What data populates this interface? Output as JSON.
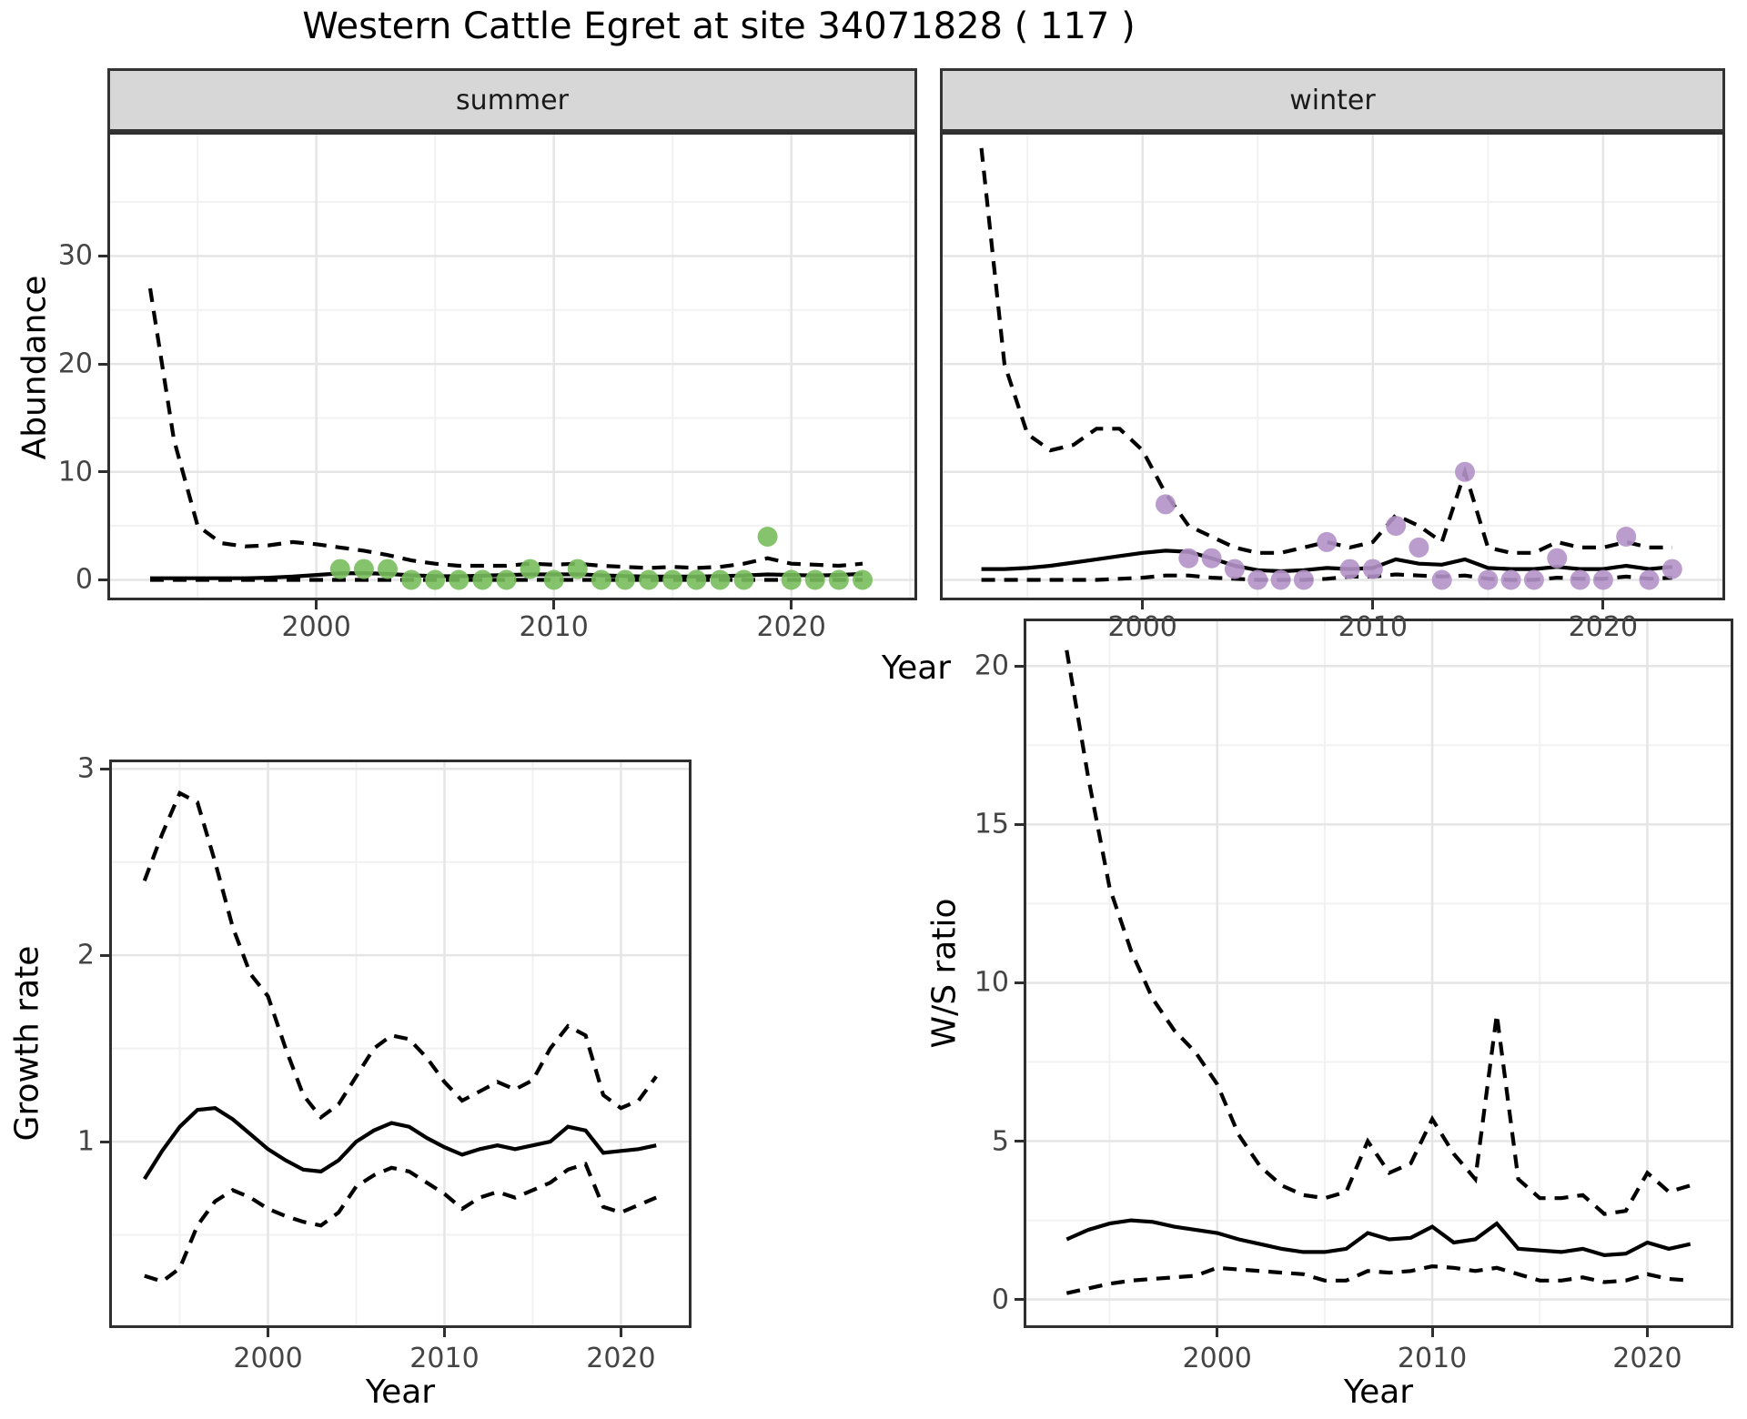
{
  "title": "Western Cattle Egret at site 34071828 ( 117 )",
  "colors": {
    "summer_points": "#78be5c",
    "winter_points": "#b492c8",
    "line": "#000000",
    "strip_background": "#d7d7d7",
    "panel_border": "#2f2f2f",
    "grid_major": "#e5e5e5",
    "grid_minor": "#f1f1f1",
    "tick_text": "#444444"
  },
  "chart_data": [
    {
      "type": "line",
      "panel": "abundance-summer",
      "facet_label": "summer",
      "xlabel": "Year",
      "ylabel": "Abundance",
      "xlim": [
        1991.2,
        2025.3
      ],
      "ylim": [
        -1.9,
        41.5
      ],
      "xticks": [
        2000,
        2010,
        2020
      ],
      "xticks_minor": [
        1995,
        2005,
        2015,
        2025
      ],
      "yticks": [
        0,
        10,
        20,
        30
      ],
      "yticks_minor": [
        5,
        15,
        25,
        35
      ],
      "grid": true,
      "x": [
        1993,
        1994,
        1995,
        1996,
        1997,
        1998,
        1999,
        2000,
        2001,
        2002,
        2003,
        2004,
        2005,
        2006,
        2007,
        2008,
        2009,
        2010,
        2011,
        2012,
        2013,
        2014,
        2015,
        2016,
        2017,
        2018,
        2019,
        2020,
        2021,
        2022,
        2023
      ],
      "series": [
        {
          "name": "upper_ci",
          "style": "dashed",
          "values": [
            27,
            13,
            5,
            3.4,
            3.1,
            3.2,
            3.5,
            3.3,
            3.0,
            2.7,
            2.3,
            1.8,
            1.5,
            1.3,
            1.3,
            1.3,
            1.5,
            1.4,
            1.5,
            1.3,
            1.2,
            1.1,
            1.2,
            1.1,
            1.2,
            1.5,
            2.0,
            1.5,
            1.4,
            1.3,
            1.5
          ]
        },
        {
          "name": "mean",
          "style": "solid",
          "values": [
            0.15,
            0.15,
            0.15,
            0.15,
            0.15,
            0.2,
            0.3,
            0.45,
            0.6,
            0.62,
            0.55,
            0.42,
            0.35,
            0.33,
            0.38,
            0.45,
            0.5,
            0.5,
            0.52,
            0.42,
            0.35,
            0.3,
            0.3,
            0.3,
            0.35,
            0.4,
            0.5,
            0.45,
            0.4,
            0.45,
            0.55
          ]
        },
        {
          "name": "lower_ci",
          "style": "dashed",
          "values": [
            0,
            0,
            0,
            0,
            0,
            0,
            0,
            0,
            0,
            0,
            0,
            0,
            0,
            0,
            0,
            0,
            0,
            0,
            0,
            0,
            0,
            0,
            0,
            0,
            0,
            0,
            0,
            0,
            0,
            0,
            0
          ]
        }
      ],
      "points": {
        "name": "observed_counts",
        "color": "#78be5c",
        "x": [
          2001,
          2002,
          2003,
          2004,
          2005,
          2006,
          2007,
          2008,
          2009,
          2010,
          2011,
          2012,
          2013,
          2014,
          2015,
          2016,
          2017,
          2018,
          2019,
          2020,
          2021,
          2022,
          2023
        ],
        "y": [
          1,
          1,
          1,
          0,
          0,
          0,
          0,
          0,
          1,
          0,
          1,
          0,
          0,
          0,
          0,
          0,
          0,
          0,
          4,
          0,
          0,
          0,
          0
        ]
      }
    },
    {
      "type": "line",
      "panel": "abundance-winter",
      "facet_label": "winter",
      "xlabel": "Year",
      "ylabel": "Abundance",
      "xlim": [
        1991.2,
        2025.3
      ],
      "ylim": [
        -1.9,
        41.5
      ],
      "xticks": [
        2000,
        2010,
        2020
      ],
      "xticks_minor": [
        1995,
        2005,
        2015,
        2025
      ],
      "yticks": [
        0,
        10,
        20,
        30
      ],
      "yticks_minor": [
        5,
        15,
        25,
        35
      ],
      "grid": true,
      "x": [
        1993,
        1994,
        1995,
        1996,
        1997,
        1998,
        1999,
        2000,
        2001,
        2002,
        2003,
        2004,
        2005,
        2006,
        2007,
        2008,
        2009,
        2010,
        2011,
        2012,
        2013,
        2014,
        2015,
        2016,
        2017,
        2018,
        2019,
        2020,
        2021,
        2022,
        2023
      ],
      "series": [
        {
          "name": "upper_ci",
          "style": "dashed",
          "values": [
            40,
            20,
            13.5,
            12,
            12.5,
            14,
            14,
            12,
            8,
            5,
            4,
            3,
            2.5,
            2.5,
            3,
            3.5,
            3,
            3.5,
            6,
            5,
            3.5,
            10,
            3,
            2.5,
            2.5,
            3.5,
            3,
            3,
            3.5,
            3,
            3
          ]
        },
        {
          "name": "mean",
          "style": "solid",
          "values": [
            1.0,
            1.0,
            1.1,
            1.3,
            1.6,
            1.9,
            2.2,
            2.5,
            2.7,
            2.6,
            2.0,
            1.3,
            0.9,
            0.8,
            0.9,
            1.1,
            1.0,
            1.1,
            1.9,
            1.5,
            1.4,
            1.9,
            1.1,
            1.0,
            1.0,
            1.2,
            1.0,
            1.0,
            1.3,
            1.0,
            1.2
          ]
        },
        {
          "name": "lower_ci",
          "style": "dashed",
          "values": [
            0,
            0,
            0,
            0,
            0,
            0,
            0.1,
            0.2,
            0.4,
            0.4,
            0.2,
            0.1,
            0,
            0,
            0,
            0.1,
            0.3,
            0.3,
            0.5,
            0.4,
            0.3,
            0.4,
            0.1,
            0,
            0,
            0.2,
            0.1,
            0.1,
            0.3,
            0.1,
            0.2
          ]
        }
      ],
      "points": {
        "name": "observed_counts",
        "color": "#b492c8",
        "x": [
          2001,
          2002,
          2003,
          2004,
          2005,
          2006,
          2007,
          2008,
          2009,
          2010,
          2011,
          2012,
          2013,
          2014,
          2015,
          2016,
          2017,
          2018,
          2019,
          2020,
          2021,
          2022,
          2023
        ],
        "y": [
          7,
          2,
          2,
          1,
          0,
          0,
          0,
          3.5,
          1,
          1,
          5,
          3,
          0,
          10,
          0,
          0,
          0,
          2,
          0,
          0,
          4,
          0,
          1
        ]
      }
    },
    {
      "type": "line",
      "panel": "growth-rate",
      "facet_label": "",
      "xlabel": "Year",
      "ylabel": "Growth rate",
      "xlim": [
        1991,
        2024
      ],
      "ylim": [
        0,
        3.05
      ],
      "xticks": [
        2000,
        2010,
        2020
      ],
      "xticks_minor": [
        1995,
        2005,
        2015
      ],
      "yticks": [
        1,
        2,
        3
      ],
      "yticks_minor": [
        0.5,
        1.5,
        2.5
      ],
      "grid": true,
      "x": [
        1993,
        1994,
        1995,
        1996,
        1997,
        1998,
        1999,
        2000,
        2001,
        2002,
        2003,
        2004,
        2005,
        2006,
        2007,
        2008,
        2009,
        2010,
        2011,
        2012,
        2013,
        2014,
        2015,
        2016,
        2017,
        2018,
        2019,
        2020,
        2021,
        2022
      ],
      "series": [
        {
          "name": "upper_ci",
          "style": "dashed",
          "values": [
            2.4,
            2.65,
            2.87,
            2.82,
            2.5,
            2.15,
            1.9,
            1.78,
            1.5,
            1.25,
            1.13,
            1.2,
            1.35,
            1.5,
            1.57,
            1.55,
            1.45,
            1.32,
            1.22,
            1.27,
            1.32,
            1.28,
            1.33,
            1.5,
            1.62,
            1.57,
            1.25,
            1.18,
            1.22,
            1.35
          ]
        },
        {
          "name": "mean",
          "style": "solid",
          "values": [
            0.8,
            0.95,
            1.08,
            1.17,
            1.18,
            1.12,
            1.04,
            0.96,
            0.9,
            0.85,
            0.84,
            0.9,
            1.0,
            1.06,
            1.1,
            1.08,
            1.02,
            0.97,
            0.93,
            0.96,
            0.98,
            0.96,
            0.98,
            1.0,
            1.08,
            1.06,
            0.94,
            0.95,
            0.96,
            0.98
          ]
        },
        {
          "name": "lower_ci",
          "style": "dashed",
          "values": [
            0.28,
            0.25,
            0.32,
            0.55,
            0.68,
            0.74,
            0.7,
            0.64,
            0.6,
            0.57,
            0.55,
            0.62,
            0.76,
            0.82,
            0.86,
            0.84,
            0.78,
            0.72,
            0.64,
            0.7,
            0.73,
            0.7,
            0.74,
            0.78,
            0.85,
            0.88,
            0.65,
            0.62,
            0.66,
            0.7
          ]
        }
      ]
    },
    {
      "type": "line",
      "panel": "ws-ratio",
      "facet_label": "",
      "xlabel": "Year",
      "ylabel": "W/S ratio",
      "xlim": [
        1991,
        2024
      ],
      "ylim": [
        -0.9,
        21.5
      ],
      "xticks": [
        2000,
        2010,
        2020
      ],
      "xticks_minor": [
        1995,
        2005,
        2015
      ],
      "yticks": [
        0,
        5,
        10,
        15,
        20
      ],
      "yticks_minor": [
        2.5,
        7.5,
        12.5,
        17.5
      ],
      "grid": true,
      "x": [
        1993,
        1994,
        1995,
        1996,
        1997,
        1998,
        1999,
        2000,
        2001,
        2002,
        2003,
        2004,
        2005,
        2006,
        2007,
        2008,
        2009,
        2010,
        2011,
        2012,
        2013,
        2014,
        2015,
        2016,
        2017,
        2018,
        2019,
        2020,
        2021,
        2022
      ],
      "series": [
        {
          "name": "upper_ci",
          "style": "dashed",
          "values": [
            20.5,
            16.5,
            13,
            11,
            9.5,
            8.5,
            7.8,
            6.8,
            5.2,
            4.2,
            3.6,
            3.3,
            3.2,
            3.4,
            5.0,
            4.0,
            4.3,
            5.7,
            4.6,
            3.8,
            9.0,
            3.8,
            3.2,
            3.2,
            3.3,
            2.7,
            2.8,
            4.0,
            3.4,
            3.6
          ]
        },
        {
          "name": "mean",
          "style": "solid",
          "values": [
            1.9,
            2.2,
            2.4,
            2.5,
            2.45,
            2.3,
            2.2,
            2.1,
            1.9,
            1.75,
            1.6,
            1.5,
            1.5,
            1.6,
            2.1,
            1.9,
            1.95,
            2.3,
            1.8,
            1.9,
            2.4,
            1.6,
            1.55,
            1.5,
            1.6,
            1.4,
            1.45,
            1.8,
            1.6,
            1.75
          ]
        },
        {
          "name": "lower_ci",
          "style": "dashed",
          "values": [
            0.2,
            0.35,
            0.5,
            0.6,
            0.65,
            0.7,
            0.75,
            1.0,
            0.95,
            0.9,
            0.85,
            0.8,
            0.6,
            0.6,
            0.9,
            0.85,
            0.9,
            1.05,
            1.0,
            0.9,
            1.0,
            0.8,
            0.6,
            0.6,
            0.7,
            0.55,
            0.6,
            0.8,
            0.65,
            0.6
          ]
        }
      ]
    }
  ]
}
